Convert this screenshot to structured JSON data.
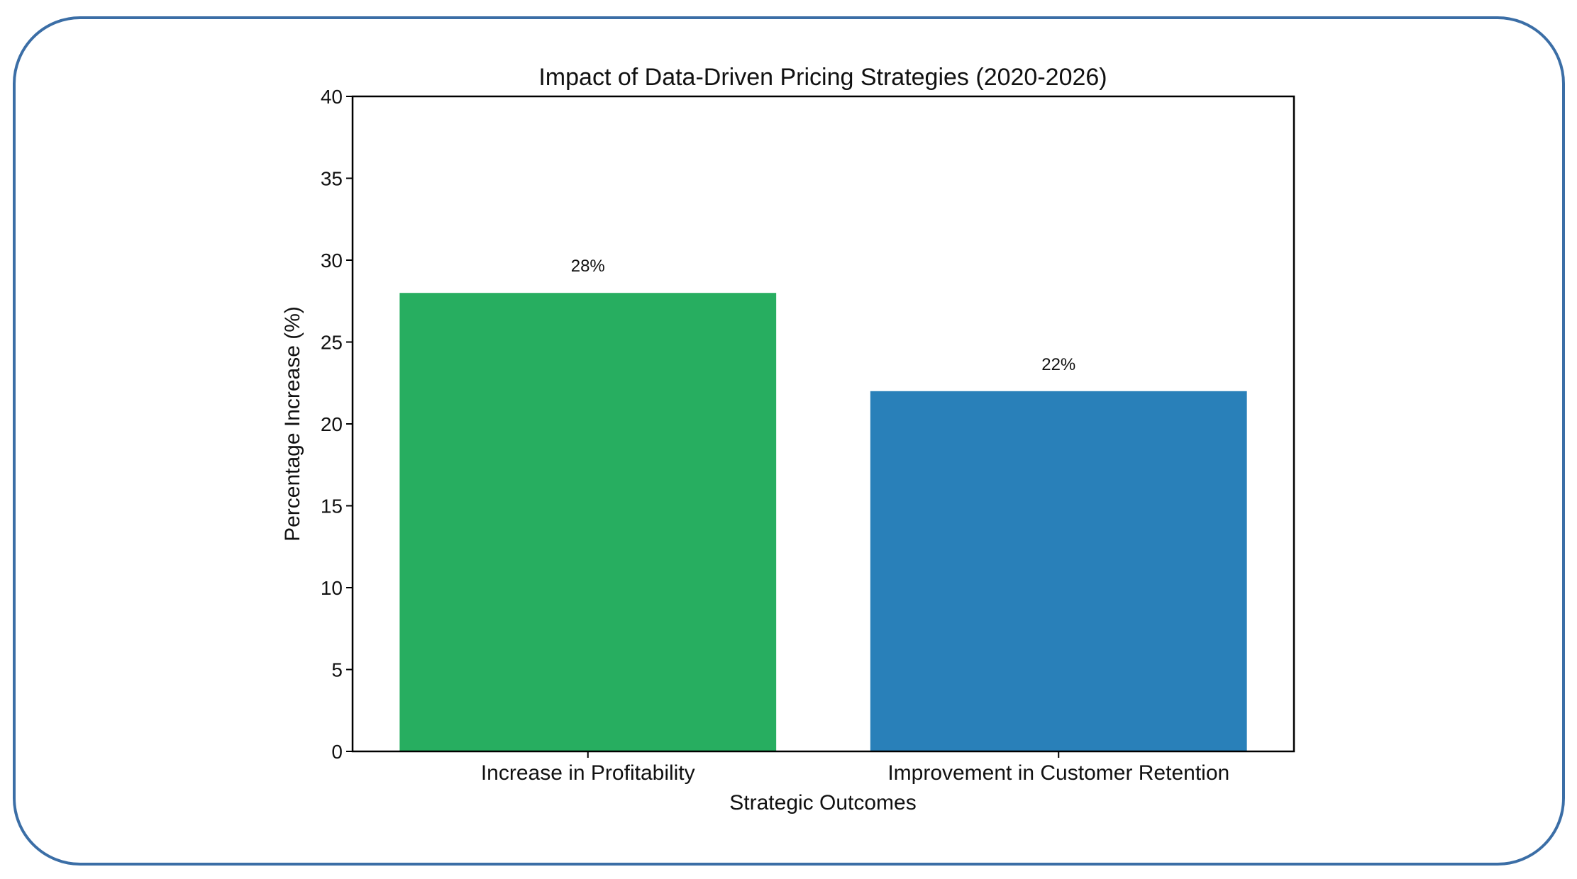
{
  "chart_data": {
    "type": "bar",
    "title": "Impact of Data-Driven Pricing Strategies (2020-2026)",
    "xlabel": "Strategic Outcomes",
    "ylabel": "Percentage Increase (%)",
    "categories": [
      "Increase in Profitability",
      "Improvement in Customer Retention"
    ],
    "values": [
      28,
      22
    ],
    "data_labels": [
      "28%",
      "22%"
    ],
    "colors": [
      "#27ae60",
      "#2980b9"
    ],
    "ylim": [
      0,
      40
    ],
    "yticks": [
      0,
      5,
      10,
      15,
      20,
      25,
      30,
      35,
      40
    ],
    "grid": false
  }
}
